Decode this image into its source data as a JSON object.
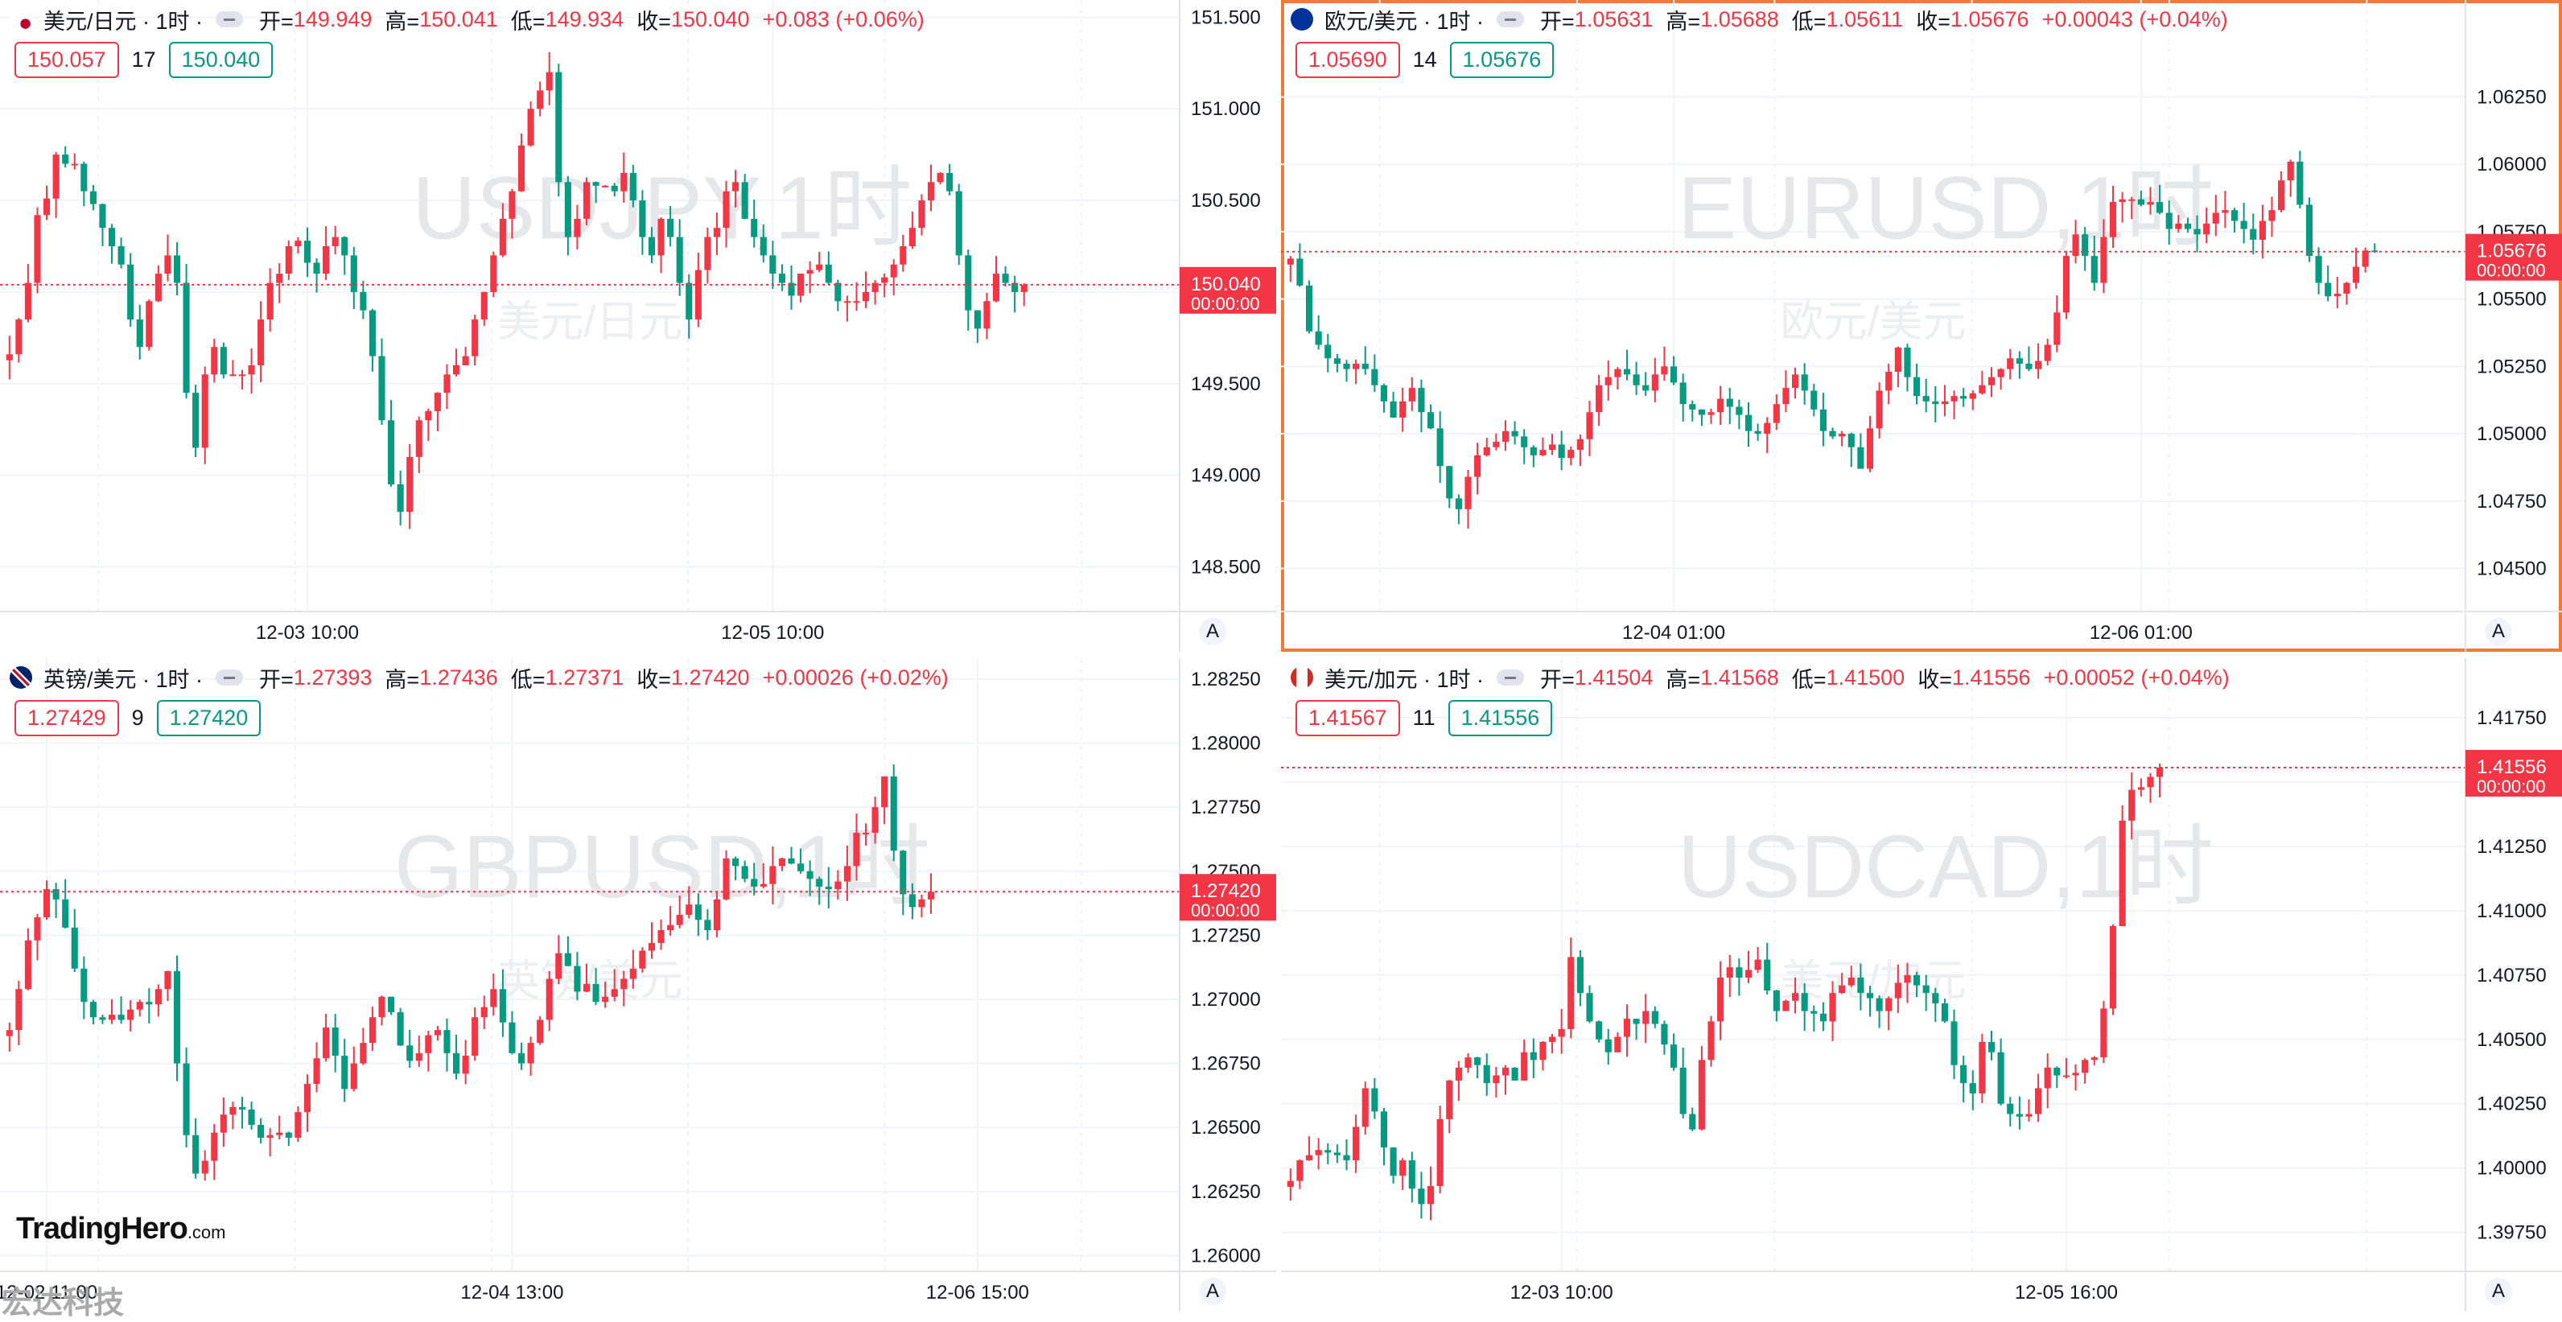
{
  "charts": [
    {
      "symbol_cn": "美元/日元 · 1时 ·",
      "watermark": "USDJPY,1时",
      "watermark_sub": "美元/日元",
      "open_label": "开=",
      "open": "149.949",
      "high_label": "高=",
      "high": "150.041",
      "low_label": "低=",
      "low": "149.934",
      "close_label": "收=",
      "close": "150.040",
      "change": "+0.083 (+0.06%)",
      "sell": "150.057",
      "spread": "17",
      "buy": "150.040",
      "last_price": "150.040",
      "countdown": "00:00:00",
      "auto_label": "A",
      "flag": "us-jp-flag",
      "active": false
    },
    {
      "symbol_cn": "欧元/美元 · 1时 ·",
      "watermark": "EURUSD,1时",
      "watermark_sub": "欧元/美元",
      "open_label": "开=",
      "open": "1.05631",
      "high_label": "高=",
      "high": "1.05688",
      "low_label": "低=",
      "low": "1.05611",
      "close_label": "收=",
      "close": "1.05676",
      "change": "+0.00043 (+0.04%)",
      "sell": "1.05690",
      "spread": "14",
      "buy": "1.05676",
      "last_price": "1.05676",
      "countdown": "00:00:00",
      "auto_label": "A",
      "flag": "eu-us-flag",
      "active": true
    },
    {
      "symbol_cn": "英镑/美元 · 1时 ·",
      "watermark": "GBPUSD,1时",
      "watermark_sub": "英镑/美元",
      "open_label": "开=",
      "open": "1.27393",
      "high_label": "高=",
      "high": "1.27436",
      "low_label": "低=",
      "low": "1.27371",
      "close_label": "收=",
      "close": "1.27420",
      "change": "+0.00026 (+0.02%)",
      "sell": "1.27429",
      "spread": "9",
      "buy": "1.27420",
      "last_price": "1.27420",
      "countdown": "00:00:00",
      "auto_label": "A",
      "flag": "gb-us-flag",
      "active": false
    },
    {
      "symbol_cn": "美元/加元 · 1时 ·",
      "watermark": "USDCAD,1时",
      "watermark_sub": "美元/加元",
      "open_label": "开=",
      "open": "1.41504",
      "high_label": "高=",
      "high": "1.41568",
      "low_label": "低=",
      "low": "1.41500",
      "close_label": "收=",
      "close": "1.41556",
      "change": "+0.00052 (+0.04%)",
      "sell": "1.41567",
      "spread": "11",
      "buy": "1.41556",
      "last_price": "1.41556",
      "countdown": "00:00:00",
      "auto_label": "A",
      "flag": "us-ca-flag",
      "active": false
    }
  ],
  "logo": {
    "brand": "TradingHero",
    "suffix": ".com"
  },
  "stamp": "宏达科技",
  "colors": {
    "up": "#f23645",
    "down": "#089981",
    "accent": "#f07a3c"
  },
  "chart_data": [
    {
      "type": "candlestick",
      "title": "美元/日元",
      "ylim": [
        148.3,
        151.55
      ],
      "yticks": [
        "151.500",
        "151.000",
        "150.500",
        "150.000",
        "149.500",
        "149.000",
        "148.500"
      ],
      "xticks": [
        "12-03 10:00",
        "12-05 10:00"
      ],
      "xtick_index": [
        32,
        82
      ],
      "n": 125,
      "last": 150.04,
      "closes": [
        149.66,
        149.85,
        150.05,
        150.42,
        150.51,
        150.75,
        150.7,
        150.7,
        150.55,
        150.48,
        150.35,
        150.25,
        150.15,
        149.85,
        149.7,
        149.95,
        150.1,
        150.2,
        150.05,
        149.45,
        149.15,
        149.55,
        149.7,
        149.55,
        149.55,
        149.55,
        149.6,
        149.85,
        150.05,
        150.1,
        150.25,
        150.28,
        150.16,
        150.1,
        150.25,
        150.3,
        150.2,
        150.0,
        149.9,
        149.65,
        149.3,
        148.95,
        148.8,
        149.1,
        149.3,
        149.35,
        149.45,
        149.55,
        149.6,
        149.65,
        149.85,
        150.0,
        150.2,
        150.4,
        150.55,
        150.8,
        151.0,
        151.1,
        151.2,
        150.6,
        150.3,
        150.4,
        150.6,
        150.58,
        150.58,
        150.55,
        150.65,
        150.5,
        150.3,
        150.2,
        150.4,
        150.3,
        150.05,
        149.85,
        150.12,
        150.3,
        150.35,
        150.55,
        150.6,
        150.4,
        150.3,
        150.2,
        150.1,
        150.05,
        149.98,
        150.1,
        150.12,
        150.15,
        150.05,
        149.95,
        149.95,
        149.95,
        150.0,
        150.05,
        150.08,
        150.15,
        150.25,
        150.35,
        150.5,
        150.6,
        150.65,
        150.55,
        150.2,
        149.9,
        149.8,
        149.95,
        150.1,
        150.05,
        150.0,
        150.04,
        150.04,
        150.04,
        150.04,
        150.04,
        150.04,
        150.04,
        150.04,
        150.04,
        150.04,
        150.04,
        150.04,
        150.04,
        150.04,
        150.04,
        150.04
      ]
    },
    {
      "type": "candlestick",
      "title": "欧元/美元",
      "ylim": [
        1.0437,
        1.0658
      ],
      "yticks": [
        "1.06250",
        "1.06000",
        "1.05750",
        "1.05500",
        "1.05250",
        "1.05000",
        "1.04750",
        "1.04500"
      ],
      "xticks": [
        "12-04 01:00",
        "12-06 01:00"
      ],
      "xtick_index": [
        41,
        91
      ],
      "n": 125,
      "last": 1.05676,
      "closes": [
        1.0565,
        1.0555,
        1.0538,
        1.0533,
        1.0528,
        1.0526,
        1.0524,
        1.0526,
        1.0524,
        1.0518,
        1.0512,
        1.0506,
        1.0512,
        1.0517,
        1.0508,
        1.0502,
        1.0488,
        1.0476,
        1.0472,
        1.0484,
        1.0492,
        1.0495,
        1.0497,
        1.0501,
        1.0499,
        1.0495,
        1.0492,
        1.0494,
        1.0496,
        1.0491,
        1.0494,
        1.0498,
        1.0508,
        1.0518,
        1.0521,
        1.0524,
        1.0522,
        1.0518,
        1.0516,
        1.0522,
        1.0525,
        1.0519,
        1.0511,
        1.0509,
        1.0507,
        1.0508,
        1.0513,
        1.051,
        1.0507,
        1.0501,
        1.05,
        1.0504,
        1.0511,
        1.0517,
        1.0522,
        1.0516,
        1.0509,
        1.0501,
        1.0499,
        1.05,
        1.0495,
        1.0487,
        1.0502,
        1.0516,
        1.0523,
        1.0532,
        1.0521,
        1.0514,
        1.0512,
        1.0511,
        1.0512,
        1.0514,
        1.0513,
        1.0515,
        1.0518,
        1.0521,
        1.0524,
        1.0528,
        1.0526,
        1.0524,
        1.0527,
        1.0533,
        1.0545,
        1.0566,
        1.0574,
        1.0566,
        1.0556,
        1.0573,
        1.0586,
        1.0587,
        1.0587,
        1.0585,
        1.0586,
        1.0582,
        1.0576,
        1.0578,
        1.0576,
        1.0574,
        1.0578,
        1.0582,
        1.0583,
        1.0579,
        1.0576,
        1.0572,
        1.0579,
        1.0583,
        1.0594,
        1.0601,
        1.0585,
        1.0566,
        1.0556,
        1.0551,
        1.0552,
        1.0556,
        1.0562,
        1.0568,
        1.05676,
        1.05676,
        1.05676,
        1.05676,
        1.05676,
        1.05676,
        1.05676,
        1.05676,
        1.05676
      ]
    },
    {
      "type": "candlestick",
      "title": "英镑/美元",
      "ylim": [
        1.2597,
        1.283
      ],
      "yticks": [
        "1.28250",
        "1.28000",
        "1.27750",
        "1.27500",
        "1.27250",
        "1.27000",
        "1.26750",
        "1.26500",
        "1.26250",
        "1.26000"
      ],
      "xticks": [
        "12-02 11:00",
        "12-04 13:00",
        "12-06 15:00"
      ],
      "xtick_index": [
        4,
        54,
        104
      ],
      "n": 125,
      "last": 1.2742,
      "closes": [
        1.2688,
        1.2704,
        1.2723,
        1.2732,
        1.2743,
        1.2739,
        1.2728,
        1.2712,
        1.2699,
        1.2693,
        1.2692,
        1.2694,
        1.2692,
        1.2696,
        1.2699,
        1.2698,
        1.2704,
        1.2711,
        1.2675,
        1.2647,
        1.2632,
        1.2637,
        1.2648,
        1.2655,
        1.2658,
        1.2657,
        1.2651,
        1.2646,
        1.2647,
        1.2648,
        1.2646,
        1.2656,
        1.2667,
        1.2677,
        1.2689,
        1.2678,
        1.2665,
        1.2675,
        1.2683,
        1.2693,
        1.2701,
        1.2695,
        1.2682,
        1.2676,
        1.2679,
        1.2686,
        1.2688,
        1.2679,
        1.2671,
        1.2678,
        1.2693,
        1.2697,
        1.2704,
        1.2691,
        1.2679,
        1.2675,
        1.2683,
        1.2692,
        1.2708,
        1.2718,
        1.2713,
        1.2703,
        1.2706,
        1.2699,
        1.2701,
        1.2704,
        1.2708,
        1.2712,
        1.2719,
        1.2722,
        1.2727,
        1.2729,
        1.2733,
        1.2737,
        1.2731,
        1.2727,
        1.2739,
        1.2755,
        1.2752,
        1.2747,
        1.2744,
        1.2745,
        1.2752,
        1.2755,
        1.2753,
        1.275,
        1.2747,
        1.2744,
        1.2743,
        1.2746,
        1.2752,
        1.2765,
        1.2765,
        1.2775,
        1.2787,
        1.2758,
        1.2741,
        1.2736,
        1.2739,
        1.2742,
        1.2742,
        1.2742,
        1.2742,
        1.2742,
        1.2742,
        1.2742,
        1.2742,
        1.2742,
        1.2742,
        1.2742,
        1.2742,
        1.2742,
        1.2742,
        1.2742,
        1.2742,
        1.2742,
        1.2742,
        1.2742,
        1.2742,
        1.2742,
        1.2742,
        1.2742,
        1.2742,
        1.2742,
        1.2742
      ]
    },
    {
      "type": "candlestick",
      "title": "美元/加元",
      "ylim": [
        1.3963,
        1.4195
      ],
      "yticks": [
        "1.41750",
        "1.41500",
        "1.41250",
        "1.41000",
        "1.40750",
        "1.40500",
        "1.40250",
        "1.40000",
        "1.39750"
      ],
      "xticks": [
        "12-03 10:00",
        "12-05 16:00"
      ],
      "xtick_index": [
        29,
        83
      ],
      "n": 125,
      "last": 1.41556,
      "closes": [
        1.3995,
        1.4003,
        1.4005,
        1.4007,
        1.4006,
        1.4005,
        1.4003,
        1.4016,
        1.4031,
        1.4022,
        1.4008,
        1.3997,
        1.4003,
        1.3992,
        1.3986,
        1.3993,
        1.4019,
        1.4034,
        1.4039,
        1.4043,
        1.404,
        1.4033,
        1.4036,
        1.4039,
        1.4034,
        1.4045,
        1.4042,
        1.4049,
        1.4051,
        1.4054,
        1.4082,
        1.4068,
        1.4057,
        1.405,
        1.4045,
        1.4051,
        1.4058,
        1.4056,
        1.4061,
        1.4056,
        1.4048,
        1.4039,
        1.4021,
        1.4015,
        1.4042,
        1.4057,
        1.4074,
        1.4078,
        1.4074,
        1.4077,
        1.4081,
        1.4069,
        1.4061,
        1.4065,
        1.4068,
        1.4061,
        1.406,
        1.4057,
        1.4068,
        1.4071,
        1.4074,
        1.4068,
        1.4066,
        1.4061,
        1.4066,
        1.4072,
        1.4075,
        1.4071,
        1.4068,
        1.4064,
        1.4057,
        1.404,
        1.4033,
        1.4029,
        1.4049,
        1.4045,
        1.4025,
        1.4021,
        1.402,
        1.4021,
        1.4031,
        1.4039,
        1.4036,
        1.4036,
        1.4037,
        1.4042,
        1.4043,
        1.4062,
        1.4094,
        1.4135,
        1.4147,
        1.4148,
        1.4152,
        1.41556,
        1.41556,
        1.41556,
        1.41556,
        1.41556,
        1.41556,
        1.41556,
        1.41556,
        1.41556,
        1.41556,
        1.41556,
        1.41556,
        1.41556,
        1.41556,
        1.41556,
        1.41556,
        1.41556,
        1.41556,
        1.41556,
        1.41556,
        1.41556,
        1.41556,
        1.41556,
        1.41556,
        1.41556,
        1.41556,
        1.41556,
        1.41556,
        1.41556,
        1.41556,
        1.41556,
        1.41556
      ]
    }
  ]
}
